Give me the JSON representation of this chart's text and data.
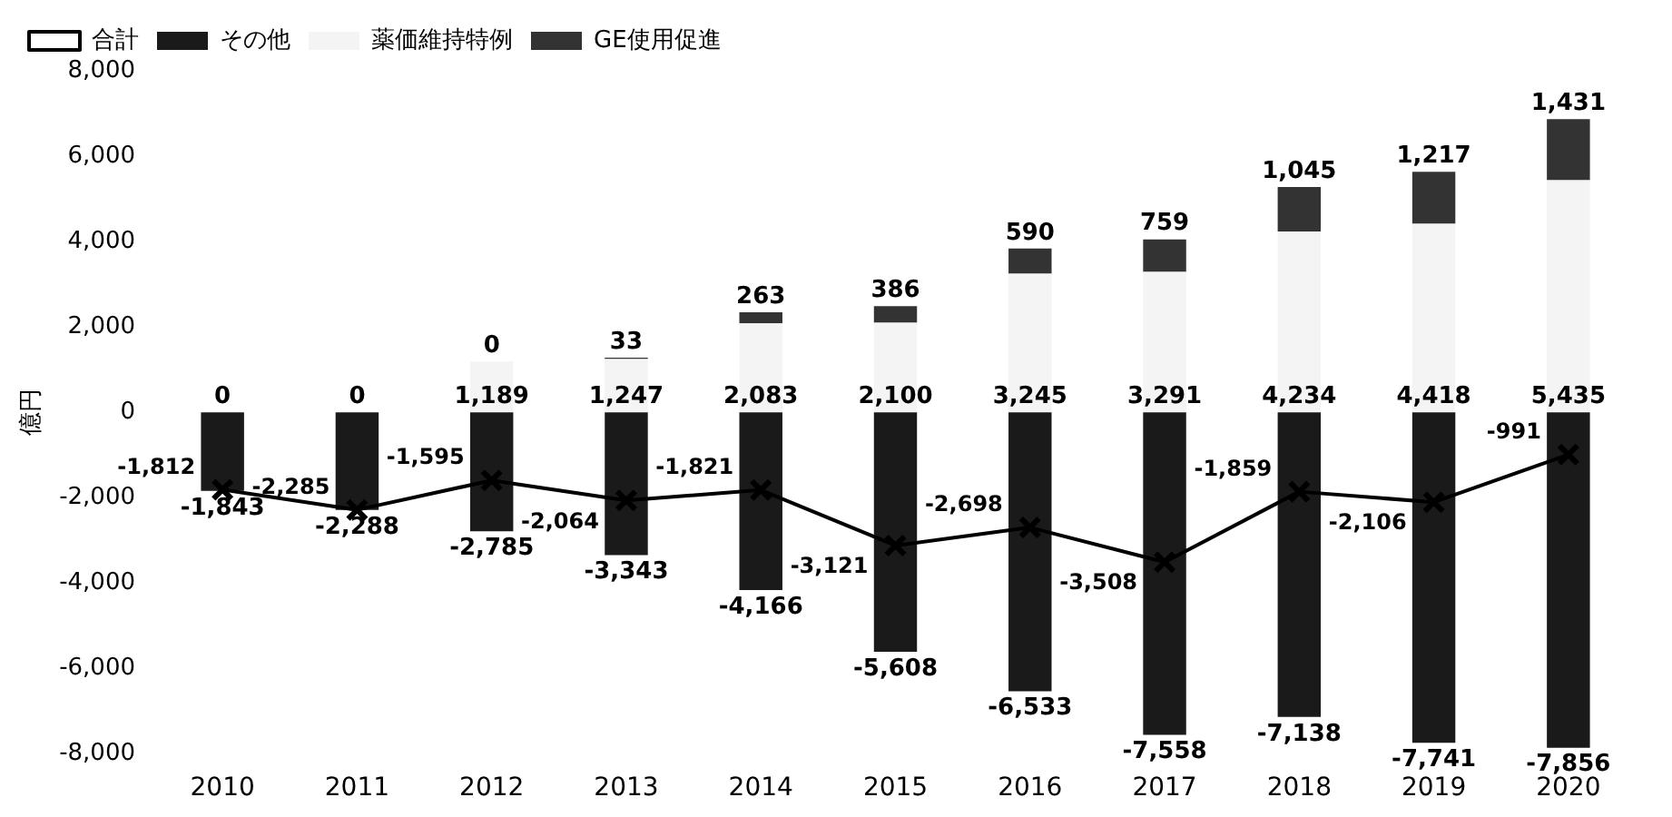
{
  "chart_data": {
    "type": "bar",
    "stacked": true,
    "ylabel": "億円",
    "categories": [
      "2010",
      "2011",
      "2012",
      "2013",
      "2014",
      "2015",
      "2016",
      "2017",
      "2018",
      "2019",
      "2020"
    ],
    "series": [
      {
        "name": "その他",
        "color": "#1a1a1a",
        "values": [
          -1843,
          -2288,
          -2785,
          -3343,
          -4166,
          -5608,
          -6533,
          -7558,
          -7138,
          -7741,
          -7856
        ],
        "value_labels": [
          "-1,843",
          "-2,288",
          "-2,785",
          "-3,343",
          "-4,166",
          "-5,608",
          "-6,533",
          "-7,558",
          "-7,138",
          "-7,741",
          "-7,856"
        ]
      },
      {
        "name": "薬価維持特例",
        "color": "#f4f4f4",
        "values": [
          0,
          0,
          1189,
          1247,
          2083,
          2100,
          3245,
          3291,
          4234,
          4418,
          5435
        ],
        "value_labels": [
          "0",
          "0",
          "1,189",
          "1,247",
          "2,083",
          "2,100",
          "3,245",
          "3,291",
          "4,234",
          "4,418",
          "5,435"
        ]
      },
      {
        "name": "GE使用促進",
        "color": "#333333",
        "values": [
          null,
          null,
          0,
          33,
          263,
          386,
          590,
          759,
          1045,
          1217,
          1431
        ],
        "value_labels": [
          null,
          null,
          "0",
          "33",
          "263",
          "386",
          "590",
          "759",
          "1,045",
          "1,217",
          "1,431"
        ]
      },
      {
        "name": "合計",
        "type": "line",
        "color": "#000000",
        "marker": "cross",
        "values": [
          -1812,
          -2285,
          -1595,
          -2064,
          -1821,
          -3121,
          -2698,
          -3508,
          -1859,
          -2106,
          -991
        ],
        "value_labels": [
          "-1,812",
          "-2,285",
          "-1,595",
          "-2,064",
          "-1,821",
          "-3,121",
          "-2,698",
          "-3,508",
          "-1,859",
          "-2,106",
          "-991"
        ]
      }
    ],
    "ylim": [
      -8000,
      8000
    ],
    "yticks": [
      {
        "value": -8000,
        "label": "-8,000"
      },
      {
        "value": -6000,
        "label": "-6,000"
      },
      {
        "value": -4000,
        "label": "-4,000"
      },
      {
        "value": -2000,
        "label": "-2,000"
      },
      0,
      {
        "value": 2000,
        "label": "2,000"
      },
      {
        "value": 4000,
        "label": "4,000"
      },
      {
        "value": 6000,
        "label": "6,000"
      },
      {
        "value": 8000,
        "label": "8,000"
      }
    ],
    "grid": false,
    "legend": "top left",
    "line_style": "solid"
  }
}
